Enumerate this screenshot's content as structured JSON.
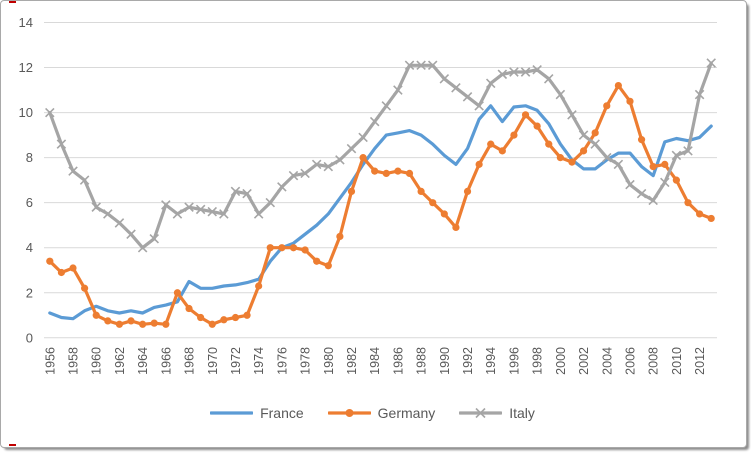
{
  "chart_data": {
    "type": "line",
    "title": "",
    "xlabel": "",
    "ylabel": "",
    "x": [
      1956,
      1957,
      1958,
      1959,
      1960,
      1961,
      1962,
      1963,
      1964,
      1965,
      1966,
      1967,
      1968,
      1969,
      1970,
      1971,
      1972,
      1973,
      1974,
      1975,
      1976,
      1977,
      1978,
      1979,
      1980,
      1981,
      1982,
      1983,
      1984,
      1985,
      1986,
      1987,
      1988,
      1989,
      1990,
      1991,
      1992,
      1993,
      1994,
      1995,
      1996,
      1997,
      1998,
      1999,
      2000,
      2001,
      2002,
      2003,
      2004,
      2005,
      2006,
      2007,
      2008,
      2009,
      2010,
      2011,
      2012,
      2013
    ],
    "x_tick_step": 2,
    "ylim": [
      0,
      14
    ],
    "y_ticks": [
      0,
      2,
      4,
      6,
      8,
      10,
      12,
      14
    ],
    "grid": true,
    "legend_position": "bottom",
    "series": [
      {
        "name": "France",
        "color": "#5B9BD5",
        "marker": "none",
        "values": [
          1.1,
          0.9,
          0.85,
          1.2,
          1.4,
          1.2,
          1.1,
          1.2,
          1.1,
          1.35,
          1.45,
          1.6,
          2.5,
          2.2,
          2.2,
          2.3,
          2.35,
          2.45,
          2.6,
          3.4,
          4.0,
          4.2,
          4.6,
          5.0,
          5.5,
          6.2,
          6.9,
          7.7,
          8.4,
          9.0,
          9.1,
          9.2,
          9.0,
          8.6,
          8.1,
          7.7,
          8.4,
          9.7,
          10.3,
          9.6,
          10.25,
          10.3,
          10.1,
          9.5,
          8.6,
          7.9,
          7.5,
          7.5,
          7.9,
          8.2,
          8.2,
          7.6,
          7.2,
          8.7,
          8.85,
          8.75,
          8.9,
          9.4
        ]
      },
      {
        "name": "Germany",
        "color": "#ED7D31",
        "marker": "circle",
        "values": [
          3.4,
          2.9,
          3.1,
          2.2,
          1.0,
          0.75,
          0.6,
          0.75,
          0.6,
          0.65,
          0.6,
          2.0,
          1.3,
          0.9,
          0.6,
          0.8,
          0.9,
          1.0,
          2.3,
          4.0,
          4.0,
          4.0,
          3.9,
          3.4,
          3.2,
          4.5,
          6.5,
          8.0,
          7.4,
          7.3,
          7.4,
          7.3,
          6.5,
          6.0,
          5.5,
          4.9,
          6.5,
          7.7,
          8.6,
          8.3,
          9.0,
          9.9,
          9.4,
          8.6,
          8.0,
          7.8,
          8.3,
          9.1,
          10.3,
          11.2,
          10.5,
          8.8,
          7.6,
          7.7,
          7.0,
          6.0,
          5.5,
          5.3
        ]
      },
      {
        "name": "Italy",
        "color": "#A5A5A5",
        "marker": "x",
        "values": [
          10.0,
          8.6,
          7.4,
          7.0,
          5.8,
          5.5,
          5.1,
          4.6,
          4.0,
          4.4,
          5.9,
          5.5,
          5.8,
          5.7,
          5.6,
          5.5,
          6.5,
          6.4,
          5.5,
          6.0,
          6.7,
          7.2,
          7.3,
          7.7,
          7.6,
          7.9,
          8.4,
          8.9,
          9.6,
          10.3,
          11.0,
          12.1,
          12.1,
          12.1,
          11.5,
          11.1,
          10.7,
          10.3,
          11.3,
          11.7,
          11.8,
          11.8,
          11.9,
          11.5,
          10.8,
          9.9,
          9.0,
          8.6,
          8.0,
          7.7,
          6.8,
          6.4,
          6.1,
          6.9,
          8.1,
          8.3,
          10.8,
          12.2
        ]
      }
    ]
  },
  "style": {
    "grid_color": "#D9D9D9",
    "tick_label_color": "#595959",
    "background": "#FFFFFF",
    "artifact_color": "#C00000"
  }
}
